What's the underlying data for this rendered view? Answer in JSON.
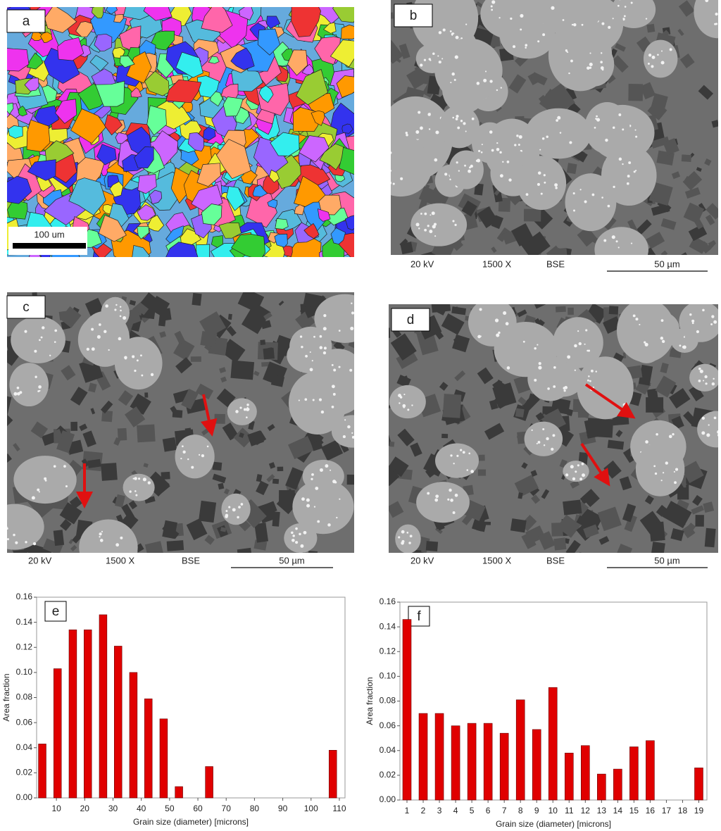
{
  "panels": [
    {
      "label": "a",
      "scale_bar": "100 um"
    },
    {
      "label": "b",
      "info": [
        "20 kV",
        "1500 X",
        "BSE"
      ],
      "scale_bar": "50 µm"
    },
    {
      "label": "c",
      "info": [
        "20 kV",
        "1500 X",
        "BSE"
      ],
      "scale_bar": "50 µm"
    },
    {
      "label": "d",
      "info": [
        "20 kV",
        "1500 X",
        "BSE"
      ],
      "scale_bar": "50 µm"
    }
  ],
  "chart_data": [
    {
      "type": "bar",
      "label": "e",
      "x_label": "Grain size (diameter) [microns]",
      "y_label": "Area fraction",
      "x": [
        5,
        10.4,
        15.8,
        21.1,
        26.5,
        31.8,
        37.2,
        42.5,
        47.9,
        53.3,
        64,
        107.7
      ],
      "values": [
        0.043,
        0.103,
        0.134,
        0.134,
        0.146,
        0.121,
        0.1,
        0.079,
        0.063,
        0.009,
        0.025,
        0.038
      ],
      "color": "#e00000",
      "xlim": [
        3,
        112
      ],
      "xticks": [
        10,
        20,
        30,
        40,
        50,
        60,
        70,
        80,
        90,
        100,
        110
      ],
      "ylim": [
        0,
        0.16
      ],
      "yticks": [
        {
          "value": 0,
          "label": "0.00"
        },
        {
          "value": 0.02,
          "label": "0.02"
        },
        {
          "value": 0.04,
          "label": "0.04"
        },
        {
          "value": 0.06,
          "label": "0.06"
        },
        {
          "value": 0.08,
          "label": "0.08"
        },
        {
          "value": 0.1,
          "label": "0.10"
        },
        {
          "value": 0.12,
          "label": "0.12"
        },
        {
          "value": 0.14,
          "label": "0.14"
        },
        {
          "value": 0.16,
          "label": "0.16"
        }
      ]
    },
    {
      "type": "bar",
      "label": "f",
      "x_label": "Grain size (diameter) [microns]",
      "y_label": "Area fraction",
      "categories": [
        "1",
        "2",
        "3",
        "4",
        "5",
        "6",
        "7",
        "8",
        "9",
        "10",
        "11",
        "12",
        "13",
        "14",
        "15",
        "16",
        "17",
        "18",
        "19"
      ],
      "values": [
        0.146,
        0.07,
        0.07,
        0.06,
        0.062,
        0.062,
        0.054,
        0.081,
        0.057,
        0.091,
        0.038,
        0.044,
        0.021,
        0.025,
        0.043,
        0.048,
        null,
        null,
        0.026
      ],
      "color": "#e00000",
      "ylim": [
        0,
        0.16
      ],
      "yticks": [
        {
          "value": 0,
          "label": "0.00"
        },
        {
          "value": 0.02,
          "label": "0.02"
        },
        {
          "value": 0.04,
          "label": "0.04"
        },
        {
          "value": 0.06,
          "label": "0.06"
        },
        {
          "value": 0.08,
          "label": "0.08"
        },
        {
          "value": 0.1,
          "label": "0.10"
        },
        {
          "value": 0.12,
          "label": "0.12"
        },
        {
          "value": 0.14,
          "label": "0.14"
        },
        {
          "value": 0.16,
          "label": "0.16"
        }
      ]
    }
  ]
}
